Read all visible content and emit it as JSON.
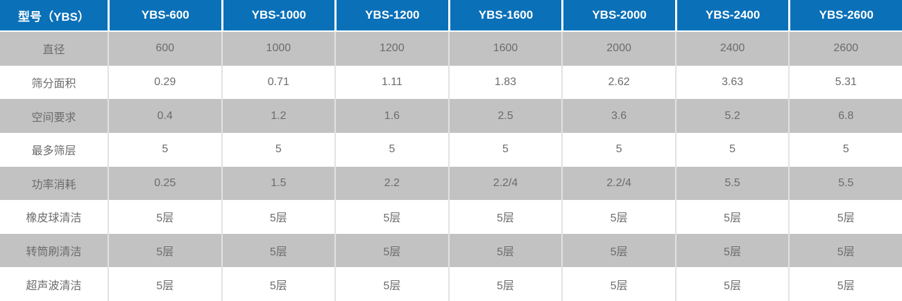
{
  "table": {
    "header": {
      "model_label": "型号（YBS）",
      "models": [
        "YBS-600",
        "YBS-1000",
        "YBS-1200",
        "YBS-1600",
        "YBS-2000",
        "YBS-2400",
        "YBS-2600"
      ]
    },
    "rows": [
      {
        "label": "直径",
        "values": [
          "600",
          "1000",
          "1200",
          "1600",
          "2000",
          "2400",
          "2600"
        ]
      },
      {
        "label": "筛分面积",
        "values": [
          "0.29",
          "0.71",
          "1.11",
          "1.83",
          "2.62",
          "3.63",
          "5.31"
        ]
      },
      {
        "label": "空间要求",
        "values": [
          "0.4",
          "1.2",
          "1.6",
          "2.5",
          "3.6",
          "5.2",
          "6.8"
        ]
      },
      {
        "label": "最多筛层",
        "values": [
          "5",
          "5",
          "5",
          "5",
          "5",
          "5",
          "5"
        ]
      },
      {
        "label": "功率消耗",
        "values": [
          "0.25",
          "1.5",
          "2.2",
          "2.2/4",
          "2.2/4",
          "5.5",
          "5.5"
        ]
      },
      {
        "label": "橡皮球清洁",
        "values": [
          "5层",
          "5层",
          "5层",
          "5层",
          "5层",
          "5层",
          "5层"
        ]
      },
      {
        "label": "转筒刷清洁",
        "values": [
          "5层",
          "5层",
          "5层",
          "5层",
          "5层",
          "5层",
          "5层"
        ]
      },
      {
        "label": "超声波清洁",
        "values": [
          "5层",
          "5层",
          "5层",
          "5层",
          "5层",
          "5层",
          "5层"
        ]
      }
    ],
    "colors": {
      "header_bg": "#0a70b8",
      "header_text": "#ffffff",
      "row_alt_bg": "#c2c2c2",
      "row_bg": "#ffffff",
      "cell_text": "#6b6b6b",
      "separator": "#e2e2e2"
    }
  }
}
